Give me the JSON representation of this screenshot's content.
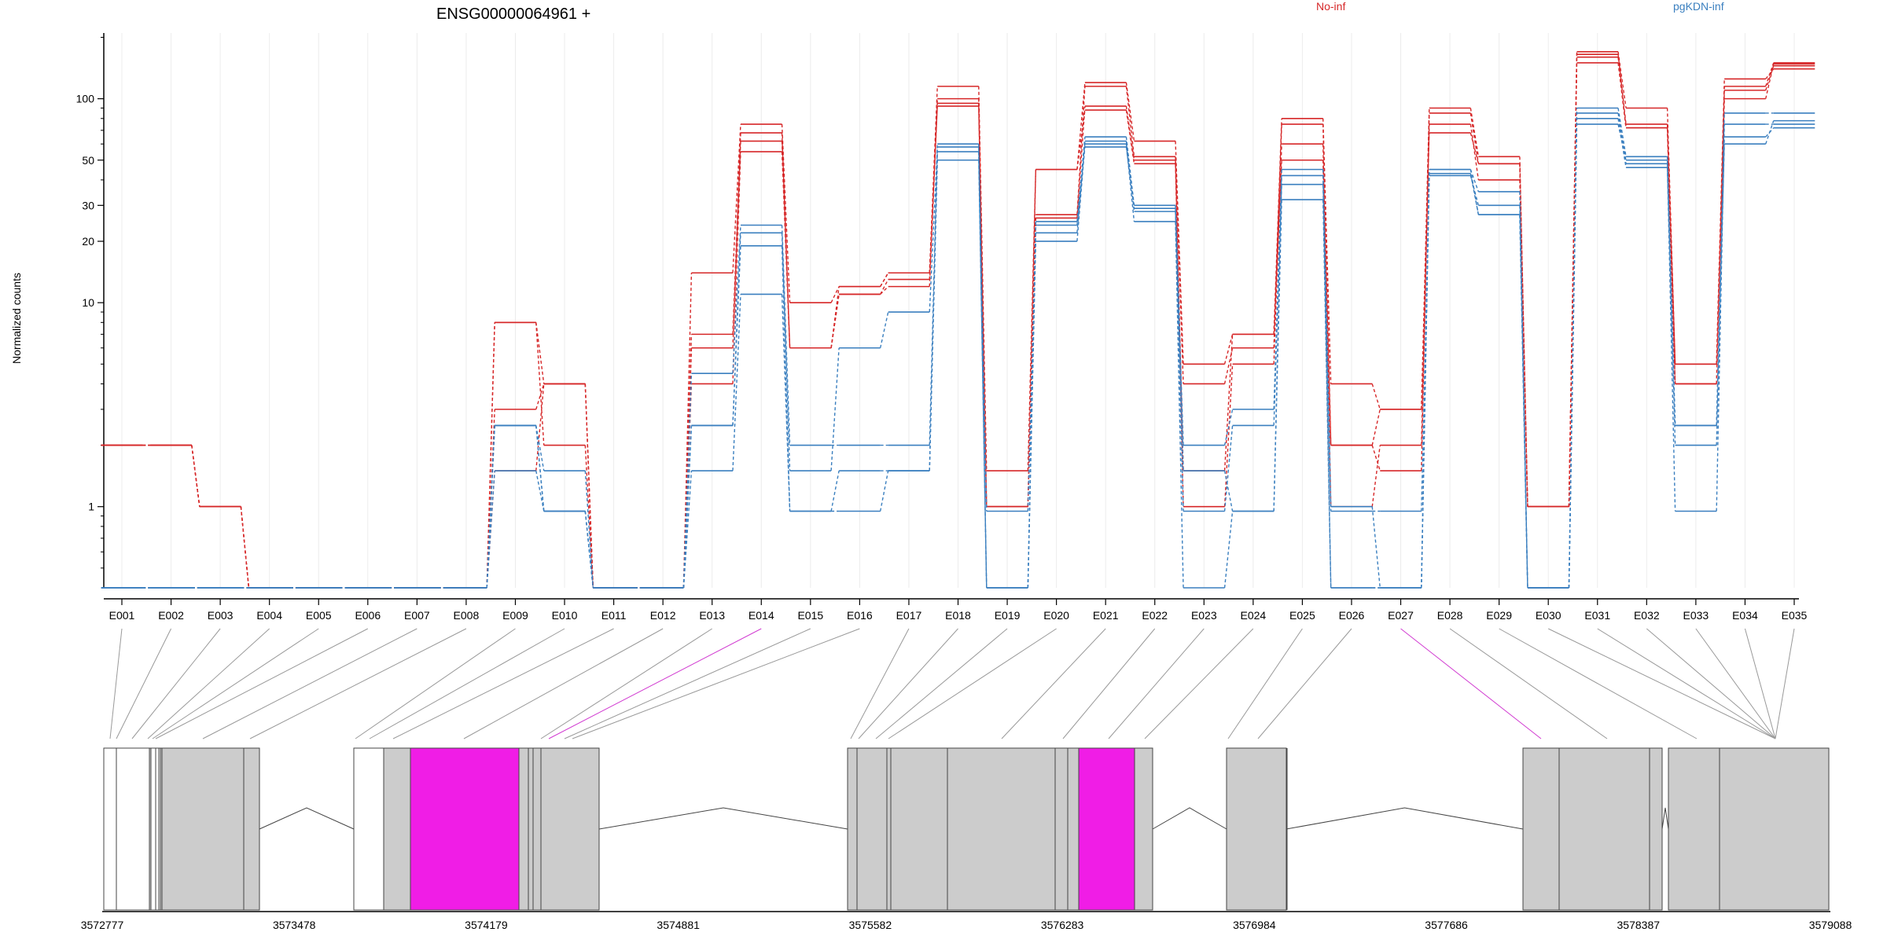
{
  "chart_data": {
    "type": "line",
    "title": "ENSG00000064961 +",
    "ylabel": "Normalized counts",
    "y_scale": "log",
    "y_ticks": [
      1,
      10,
      20,
      30,
      50,
      100
    ],
    "y_tick_labels": [
      "1",
      "10",
      "20",
      "30",
      "50",
      "100"
    ],
    "ylim": [
      0.4,
      210
    ],
    "grid": "vertical, light",
    "legend_placement": "top",
    "categories": [
      "E001",
      "E002",
      "E003",
      "E004",
      "E005",
      "E006",
      "E007",
      "E008",
      "E009",
      "E010",
      "E011",
      "E012",
      "E013",
      "E014",
      "E015",
      "E016",
      "E017",
      "E018",
      "E019",
      "E020",
      "E021",
      "E022",
      "E023",
      "E024",
      "E025",
      "E026",
      "E027",
      "E028",
      "E029",
      "E030",
      "E031",
      "E032",
      "E033",
      "E034",
      "E035"
    ],
    "groups": [
      {
        "name": "No-inf",
        "color": "#d62728"
      },
      {
        "name": "pgKDN-inf",
        "color": "#3a7fbf"
      }
    ],
    "series": [
      {
        "group": "No-inf",
        "values": [
          2,
          2,
          1,
          0.4,
          0.4,
          0.4,
          0.4,
          0.4,
          8,
          4,
          0.4,
          0.4,
          14,
          75,
          10,
          12,
          14,
          115,
          1.5,
          45,
          120,
          62,
          5,
          7,
          80,
          4,
          3,
          90,
          52,
          1,
          170,
          90,
          5,
          115,
          150
        ]
      },
      {
        "group": "No-inf",
        "values": [
          2,
          2,
          1,
          0.4,
          0.4,
          0.4,
          0.4,
          0.4,
          8,
          2,
          0.4,
          0.4,
          7,
          68,
          6,
          11,
          13,
          100,
          1,
          27,
          115,
          52,
          4,
          6,
          75,
          2,
          1.5,
          85,
          48,
          1,
          165,
          75,
          4,
          100,
          148
        ]
      },
      {
        "group": "No-inf",
        "values": [
          2,
          2,
          1,
          0.4,
          0.4,
          0.4,
          0.4,
          0.4,
          3,
          4,
          0.4,
          0.4,
          6,
          62,
          6,
          11,
          12,
          95,
          1,
          26,
          92,
          50,
          1,
          5,
          60,
          1,
          2,
          75,
          40,
          1,
          160,
          72,
          4,
          110,
          145
        ]
      },
      {
        "group": "No-inf",
        "values": [
          2,
          2,
          1,
          0.4,
          0.4,
          0.4,
          0.4,
          0.4,
          1.5,
          4,
          0.4,
          0.4,
          4,
          55,
          6,
          12,
          14,
          92,
          1,
          45,
          88,
          48,
          1.5,
          7,
          50,
          2,
          3,
          68,
          48,
          1,
          150,
          72,
          5,
          125,
          140
        ]
      },
      {
        "group": "pgKDN-inf",
        "values": [
          0.4,
          0.4,
          0.4,
          0.4,
          0.4,
          0.4,
          0.4,
          0.4,
          2.5,
          1.5,
          0.4,
          0.4,
          4.5,
          24,
          2,
          2,
          2,
          60,
          0.4,
          25,
          65,
          30,
          2,
          3,
          45,
          1,
          0.4,
          45,
          35,
          0.4,
          90,
          52,
          2.5,
          85,
          85
        ]
      },
      {
        "group": "pgKDN-inf",
        "values": [
          0.4,
          0.4,
          0.4,
          0.4,
          0.4,
          0.4,
          0.4,
          0.4,
          1.5,
          0.95,
          0.4,
          0.4,
          2.5,
          22,
          1.5,
          6,
          9,
          58,
          0.95,
          22,
          62,
          28,
          0.95,
          2.5,
          38,
          0.95,
          0.95,
          42,
          30,
          0.4,
          85,
          48,
          0.95,
          75,
          75
        ]
      },
      {
        "group": "pgKDN-inf",
        "values": [
          0.4,
          0.4,
          0.4,
          0.4,
          0.4,
          0.4,
          0.4,
          0.4,
          2.5,
          0.95,
          0.4,
          0.4,
          1.5,
          11,
          0.95,
          1.5,
          1.5,
          55,
          0.4,
          20,
          60,
          25,
          0.4,
          0.95,
          32,
          0.4,
          0.4,
          45,
          27,
          0.4,
          75,
          50,
          2,
          65,
          72
        ]
      },
      {
        "group": "pgKDN-inf",
        "values": [
          0.4,
          0.4,
          0.4,
          0.4,
          0.4,
          0.4,
          0.4,
          0.4,
          2.5,
          0.95,
          0.4,
          0.4,
          2.5,
          19,
          0.95,
          0.95,
          1.5,
          50,
          0.4,
          24,
          58,
          29,
          1.5,
          0.95,
          42,
          0.4,
          0.4,
          43,
          27,
          0.4,
          80,
          46,
          2.5,
          60,
          78
        ]
      }
    ],
    "highlighted_exons": [
      "E014",
      "E027"
    ],
    "genomic_axis_ticks": [
      "3572777",
      "3573478",
      "3574179",
      "3574881",
      "3575582",
      "3576283",
      "3576984",
      "3577686",
      "3578387",
      "3579088"
    ]
  }
}
